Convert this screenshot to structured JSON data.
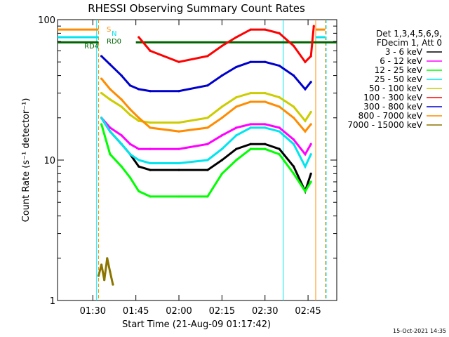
{
  "chart_data": {
    "type": "line",
    "title": "RHESSI Observing Summary Count Rates",
    "xlabel": "Start Time (21-Aug-09 01:17:42)",
    "ylabel": "Count Rate (s⁻¹ detector⁻¹)",
    "y_scale": "log",
    "ylim": [
      1,
      100
    ],
    "xlim": [
      "01:17:42",
      "02:55:00"
    ],
    "x_ticks": [
      "01:30",
      "01:45",
      "02:00",
      "02:15",
      "02:30",
      "02:45"
    ],
    "y_ticks": [
      "1",
      "10",
      "100"
    ],
    "legend_header": [
      "Det 1,3,4,5,6,9,",
      "FDecim 1, Att 0"
    ],
    "legend_placement": "right",
    "timestamp": "15-Oct-2021 14:35",
    "annotations": [
      {
        "label": "S",
        "color": "#ff8c00"
      },
      {
        "label": "N",
        "color": "#00e5ee"
      },
      {
        "label": "RD0",
        "color": "#006400"
      },
      {
        "label": "RD4",
        "color": "#006400"
      }
    ],
    "flag_bars": [
      {
        "label": "S",
        "color": "#ff8c00",
        "level": 85
      },
      {
        "label": "N",
        "color": "#00e5ee",
        "level": 75
      },
      {
        "label": "RD0",
        "color": "#006400",
        "level": 69
      }
    ],
    "vertical_markers": [
      {
        "time": "01:31:20",
        "color": "#00e5ee",
        "style": "solid"
      },
      {
        "time": "01:32:00",
        "color": "#ff8c00",
        "style": "dashed"
      },
      {
        "time": "02:36:20",
        "color": "#00e5ee",
        "style": "solid"
      },
      {
        "time": "02:47:40",
        "color": "#ff8c00",
        "style": "solid"
      },
      {
        "time": "02:51:00",
        "color": "#ff8c00",
        "style": "dashed"
      },
      {
        "time": "02:51:20",
        "color": "#00e5ee",
        "style": "dashed"
      }
    ],
    "series": [
      {
        "name": "3 - 6 keV",
        "color": "#000000",
        "x": [
          "01:33",
          "01:36",
          "01:40",
          "01:43",
          "01:46",
          "01:50",
          "02:00",
          "02:10",
          "02:15",
          "02:20",
          "02:25",
          "02:30",
          "02:35",
          "02:40",
          "02:44",
          "02:46"
        ],
        "y": [
          20,
          16,
          13,
          11,
          9,
          8.5,
          8.5,
          8.5,
          10,
          12,
          13,
          13,
          12,
          9,
          6,
          8
        ]
      },
      {
        "name": "6 - 12 keV",
        "color": "#ff00ff",
        "x": [
          "01:33",
          "01:36",
          "01:40",
          "01:43",
          "01:46",
          "01:50",
          "02:00",
          "02:10",
          "02:15",
          "02:20",
          "02:25",
          "02:30",
          "02:35",
          "02:40",
          "02:44",
          "02:46"
        ],
        "y": [
          20,
          17,
          15,
          13,
          12,
          12,
          12,
          13,
          15,
          17,
          18,
          18,
          17,
          14,
          11,
          13
        ]
      },
      {
        "name": "12 - 25 keV",
        "color": "#00ff00",
        "x": [
          "01:33",
          "01:36",
          "01:40",
          "01:43",
          "01:46",
          "01:50",
          "02:00",
          "02:10",
          "02:15",
          "02:20",
          "02:25",
          "02:30",
          "02:35",
          "02:40",
          "02:44",
          "02:46"
        ],
        "y": [
          18,
          11,
          9,
          7.5,
          6,
          5.5,
          5.5,
          5.5,
          8,
          10,
          12,
          12,
          11,
          8,
          6,
          7
        ]
      },
      {
        "name": "25 - 50 keV",
        "color": "#00e5ee",
        "x": [
          "01:33",
          "01:36",
          "01:40",
          "01:43",
          "01:46",
          "01:50",
          "02:00",
          "02:10",
          "02:15",
          "02:20",
          "02:25",
          "02:30",
          "02:35",
          "02:40",
          "02:44",
          "02:46"
        ],
        "y": [
          20,
          16,
          13,
          11,
          10,
          9.5,
          9.5,
          10,
          12,
          15,
          17,
          17,
          16,
          13,
          9,
          11
        ]
      },
      {
        "name": "50 - 100 keV",
        "color": "#cccc00",
        "x": [
          "01:33",
          "01:36",
          "01:40",
          "01:43",
          "01:46",
          "01:50",
          "02:00",
          "02:10",
          "02:15",
          "02:20",
          "02:25",
          "02:30",
          "02:35",
          "02:40",
          "02:44",
          "02:46"
        ],
        "y": [
          30,
          27,
          24,
          21,
          19,
          18.5,
          18.5,
          20,
          24,
          28,
          30,
          30,
          28,
          24,
          19,
          22
        ]
      },
      {
        "name": "100 - 300 keV",
        "color": "#ff0000",
        "x": [
          "01:46",
          "01:50",
          "02:00",
          "02:10",
          "02:15",
          "02:20",
          "02:25",
          "02:30",
          "02:35",
          "02:40",
          "02:44",
          "02:46",
          "02:47"
        ],
        "y": [
          75,
          60,
          50,
          55,
          65,
          75,
          85,
          85,
          80,
          65,
          50,
          55,
          90
        ]
      },
      {
        "name": "300 - 800 keV",
        "color": "#0000cd",
        "x": [
          "01:33",
          "01:36",
          "01:40",
          "01:43",
          "01:46",
          "01:50",
          "02:00",
          "02:10",
          "02:15",
          "02:20",
          "02:25",
          "02:30",
          "02:35",
          "02:40",
          "02:44",
          "02:46"
        ],
        "y": [
          55,
          48,
          40,
          34,
          32,
          31,
          31,
          34,
          40,
          46,
          50,
          50,
          47,
          40,
          32,
          36
        ]
      },
      {
        "name": "800 - 7000 keV",
        "color": "#ff8c00",
        "x": [
          "01:33",
          "01:36",
          "01:40",
          "01:43",
          "01:46",
          "01:50",
          "02:00",
          "02:10",
          "02:15",
          "02:20",
          "02:25",
          "02:30",
          "02:35",
          "02:40",
          "02:44",
          "02:46"
        ],
        "y": [
          38,
          32,
          27,
          23,
          20,
          17,
          16,
          17,
          20,
          24,
          26,
          26,
          24,
          20,
          16,
          18
        ]
      },
      {
        "name": "7000 - 15000 keV",
        "color": "#8b7500",
        "x": [
          "01:32",
          "01:33",
          "01:34",
          "01:35",
          "01:36",
          "01:37"
        ],
        "y": [
          1.5,
          1.8,
          1.4,
          2.0,
          1.6,
          1.3
        ]
      }
    ]
  }
}
